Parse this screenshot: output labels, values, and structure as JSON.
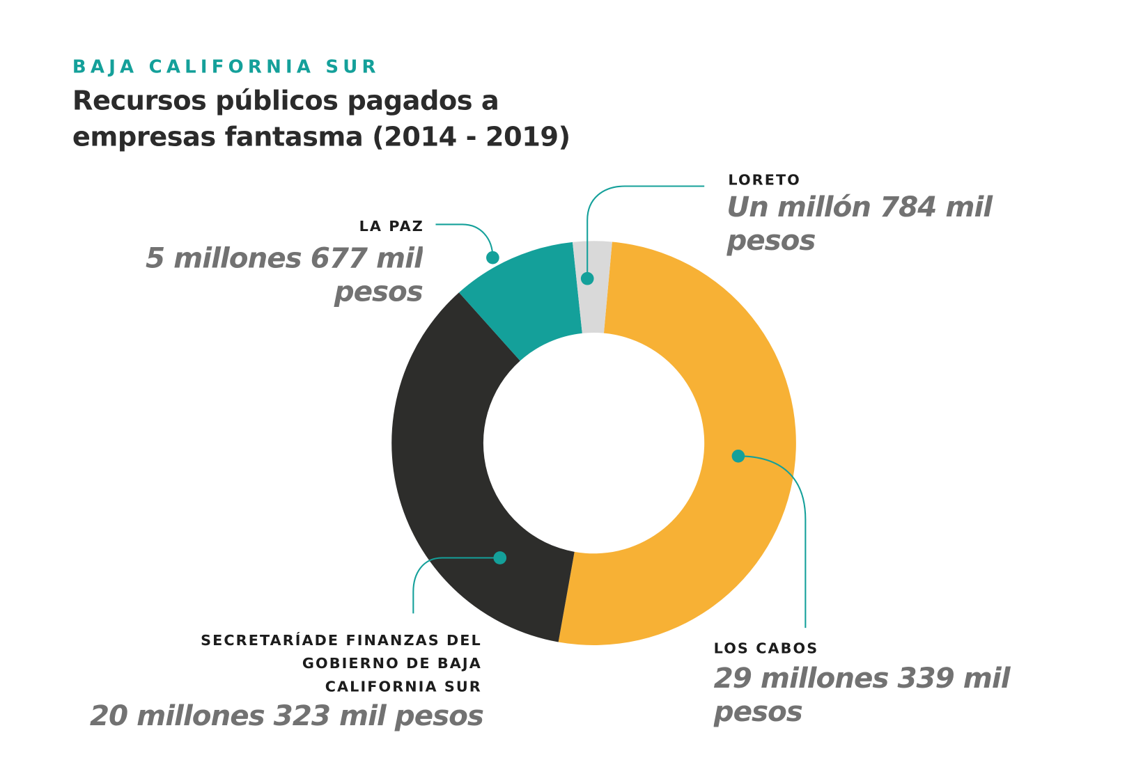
{
  "chart_data": {
    "type": "donut",
    "subtitle": "BAJA CALIFORNIA SUR",
    "title": "Recursos públicos pagados a empresas fantasma (2014 - 2019)",
    "categories": [
      "LOS CABOS",
      "SECRETARÍADE FINANZAS DEL GOBIERNO DE BAJA CALIFORNIA SUR",
      "LA PAZ",
      "LORETO"
    ],
    "values": [
      29339000,
      20323000,
      5677000,
      1784000
    ],
    "value_labels": [
      "29 millones 339 mil pesos",
      "20 millones 323 mil pesos",
      "5 millones 677 mil pesos",
      "Un millón 784 mil pesos"
    ],
    "colors": [
      "#f7b135",
      "#2d2d2b",
      "#14a09a",
      "#d9d9d9"
    ]
  }
}
